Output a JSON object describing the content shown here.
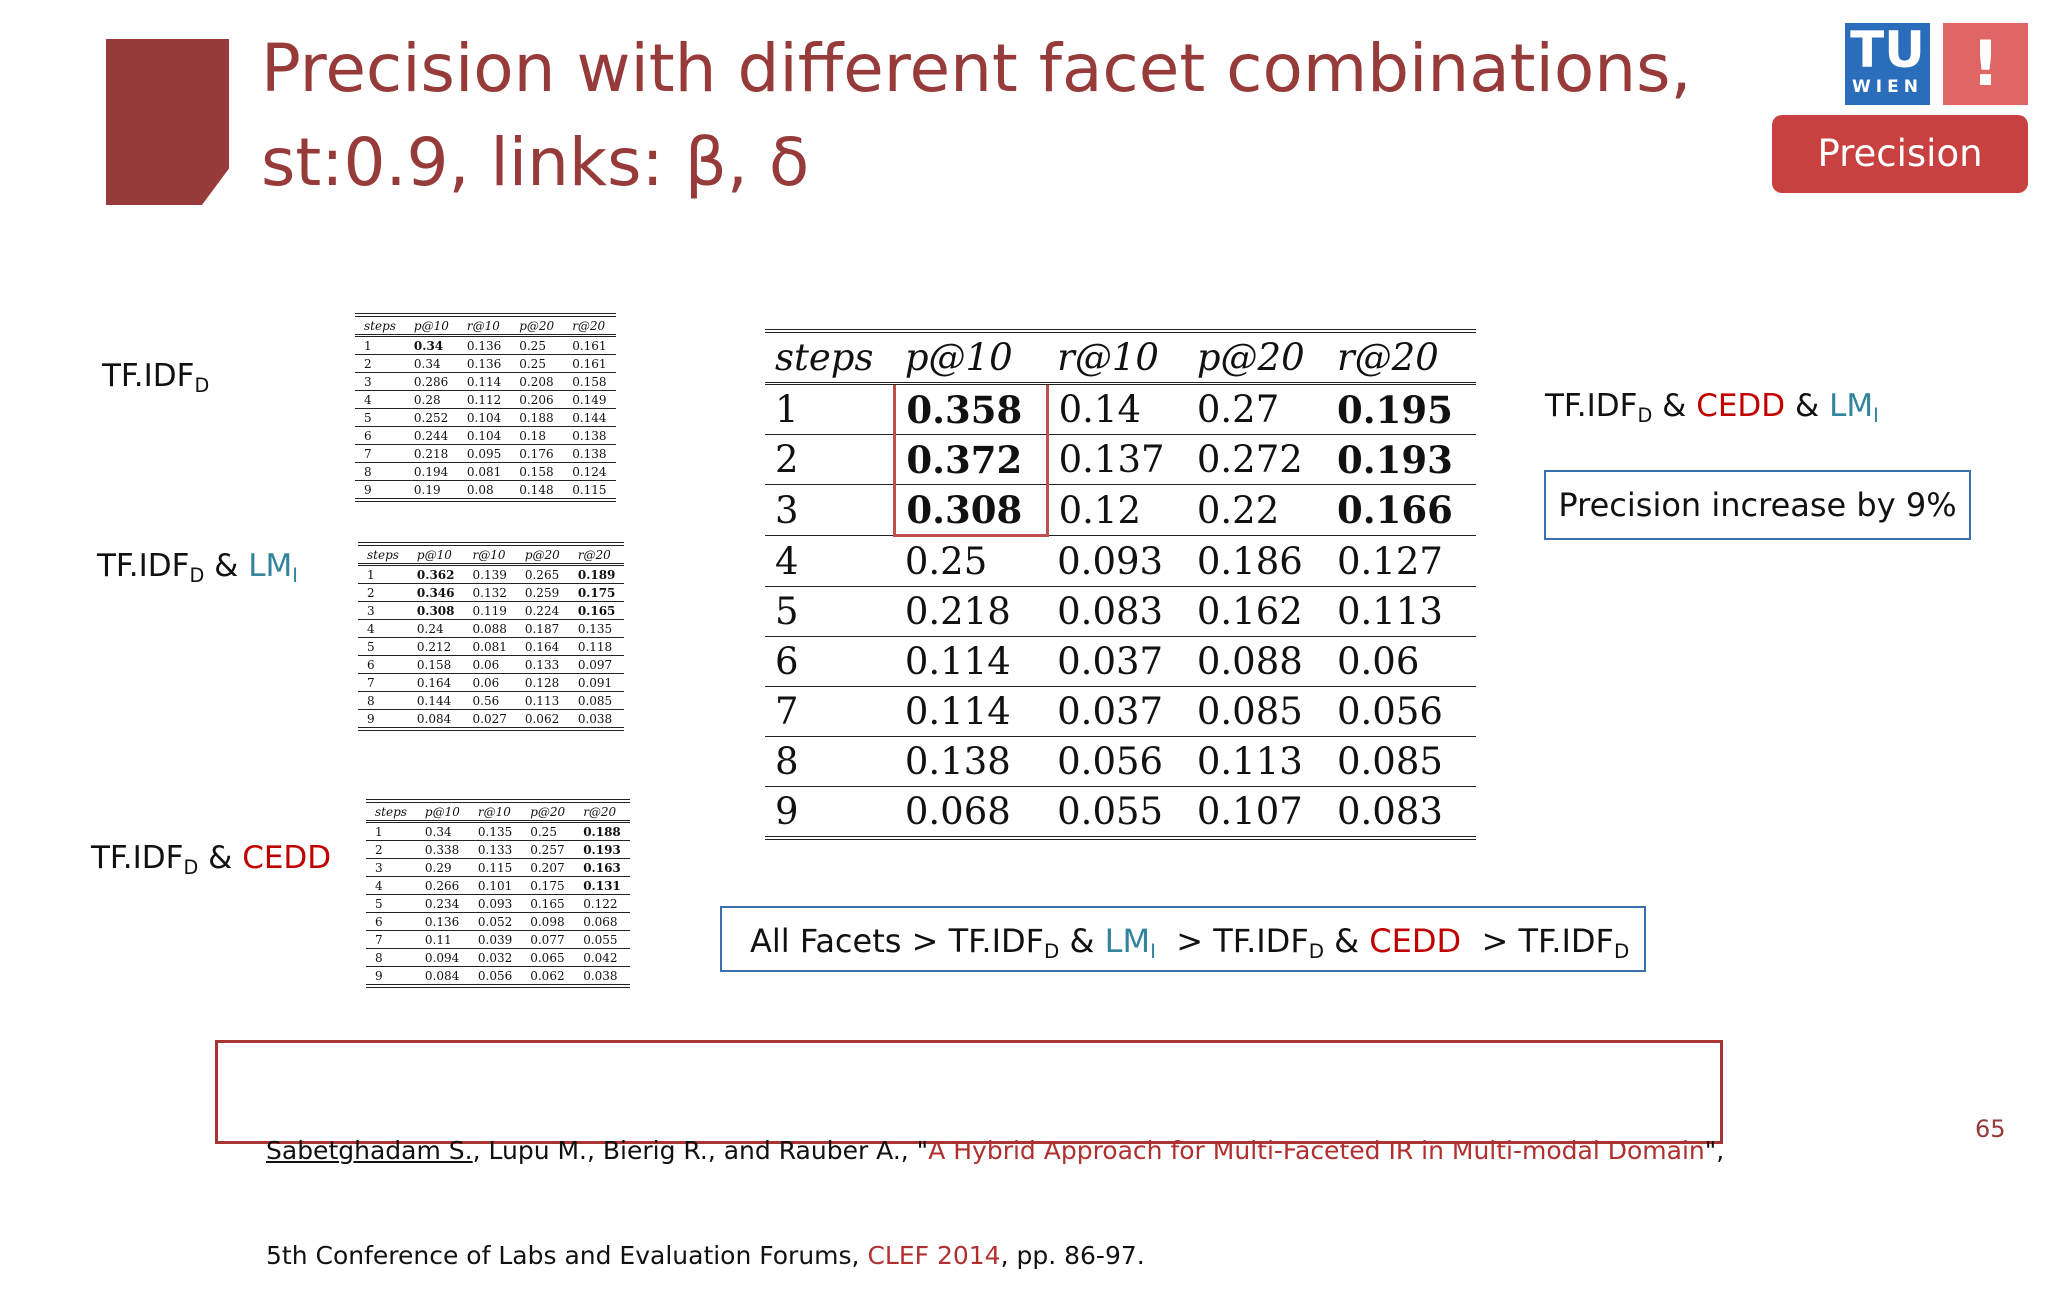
{
  "title": {
    "lines": [
      "Precision with different facet combinations,",
      "st:0.9, links: β, δ"
    ]
  },
  "logo": {
    "mark": "TU",
    "word": "WIEN",
    "sign": "!"
  },
  "badge": "Precision",
  "small_tables": [
    {
      "label": [
        {
          "t": "TF.IDF"
        },
        {
          "t": "D",
          "sub": true
        }
      ],
      "header": [
        "steps",
        "p@10",
        "r@10",
        "p@20",
        "r@20"
      ],
      "bold": [
        [
          0,
          1
        ]
      ],
      "rows": [
        [
          1,
          0.34,
          0.136,
          0.25,
          0.161
        ],
        [
          2,
          0.34,
          0.136,
          0.25,
          0.161
        ],
        [
          3,
          0.286,
          0.114,
          0.208,
          0.158
        ],
        [
          4,
          0.28,
          0.112,
          0.206,
          0.149
        ],
        [
          5,
          0.252,
          0.104,
          0.188,
          0.144
        ],
        [
          6,
          0.244,
          0.104,
          0.18,
          0.138
        ],
        [
          7,
          0.218,
          0.095,
          0.176,
          0.138
        ],
        [
          8,
          0.194,
          0.081,
          0.158,
          0.124
        ],
        [
          9,
          0.19,
          0.08,
          0.148,
          0.115
        ]
      ]
    },
    {
      "label": [
        {
          "t": "TF.IDF"
        },
        {
          "t": "D",
          "sub": true
        },
        {
          "t": " & "
        },
        {
          "t": "LM",
          "color": "#31849b"
        },
        {
          "t": "I",
          "sub": true,
          "color": "#31849b"
        }
      ],
      "header": [
        "steps",
        "p@10",
        "r@10",
        "p@20",
        "r@20"
      ],
      "bold": [
        [
          0,
          1
        ],
        [
          1,
          1
        ],
        [
          2,
          1
        ],
        [
          0,
          4
        ],
        [
          1,
          4
        ],
        [
          2,
          4
        ]
      ],
      "rows": [
        [
          1,
          0.362,
          0.139,
          0.265,
          0.189
        ],
        [
          2,
          0.346,
          0.132,
          0.259,
          0.175
        ],
        [
          3,
          0.308,
          0.119,
          0.224,
          0.165
        ],
        [
          4,
          0.24,
          0.088,
          0.187,
          0.135
        ],
        [
          5,
          0.212,
          0.081,
          0.164,
          0.118
        ],
        [
          6,
          0.158,
          0.06,
          0.133,
          0.097
        ],
        [
          7,
          0.164,
          0.06,
          0.128,
          0.091
        ],
        [
          8,
          0.144,
          0.56,
          0.113,
          0.085
        ],
        [
          9,
          0.084,
          0.027,
          0.062,
          0.038
        ]
      ]
    },
    {
      "label": [
        {
          "t": "TF.IDF"
        },
        {
          "t": "D",
          "sub": true
        },
        {
          "t": " & "
        },
        {
          "t": "CEDD",
          "color": "#c00000"
        }
      ],
      "header": [
        "steps",
        "p@10",
        "r@10",
        "p@20",
        "r@20"
      ],
      "bold": [
        [
          0,
          4
        ],
        [
          1,
          4
        ],
        [
          2,
          4
        ],
        [
          3,
          4
        ]
      ],
      "rows": [
        [
          1,
          0.34,
          0.135,
          0.25,
          0.188
        ],
        [
          2,
          0.338,
          0.133,
          0.257,
          0.193
        ],
        [
          3,
          0.29,
          0.115,
          0.207,
          0.163
        ],
        [
          4,
          0.266,
          0.101,
          0.175,
          0.131
        ],
        [
          5,
          0.234,
          0.093,
          0.165,
          0.122
        ],
        [
          6,
          0.136,
          0.052,
          0.098,
          0.068
        ],
        [
          7,
          0.11,
          0.039,
          0.077,
          0.055
        ],
        [
          8,
          0.094,
          0.032,
          0.065,
          0.042
        ],
        [
          9,
          0.084,
          0.056,
          0.062,
          0.038
        ]
      ]
    }
  ],
  "main_table": {
    "label": [
      {
        "t": "TF.IDF"
      },
      {
        "t": "D",
        "sub": true
      },
      {
        "t": " & "
      },
      {
        "t": "CEDD",
        "color": "#c00000"
      },
      {
        "t": " & "
      },
      {
        "t": "LM",
        "color": "#31849b"
      },
      {
        "t": "I",
        "sub": true,
        "color": "#31849b"
      }
    ],
    "header": [
      "steps",
      "p@10",
      "r@10",
      "p@20",
      "r@20"
    ],
    "bold": [
      [
        0,
        1
      ],
      [
        1,
        1
      ],
      [
        2,
        1
      ],
      [
        0,
        4
      ],
      [
        1,
        4
      ],
      [
        2,
        4
      ]
    ],
    "highlight": {
      "col": 1,
      "rows": [
        0,
        2
      ],
      "color": "#c0504d"
    },
    "rows": [
      [
        1,
        0.358,
        0.14,
        0.27,
        0.195
      ],
      [
        2,
        0.372,
        0.137,
        0.272,
        0.193
      ],
      [
        3,
        0.308,
        0.12,
        0.22,
        0.166
      ],
      [
        4,
        0.25,
        0.093,
        0.186,
        0.127
      ],
      [
        5,
        0.218,
        0.083,
        0.162,
        0.113
      ],
      [
        6,
        0.114,
        0.037,
        0.088,
        0.06
      ],
      [
        7,
        0.114,
        0.037,
        0.085,
        0.056
      ],
      [
        8,
        0.138,
        0.056,
        0.113,
        0.085
      ],
      [
        9,
        0.068,
        0.055,
        0.107,
        0.083
      ]
    ]
  },
  "note": "Precision increase by 9%",
  "ranking": [
    {
      "t": "All Facets > "
    },
    {
      "t": "TF.IDF"
    },
    {
      "t": "D",
      "sub": true
    },
    {
      "t": " & "
    },
    {
      "t": "LM",
      "color": "#31849b"
    },
    {
      "t": "I",
      "sub": true,
      "color": "#31849b"
    },
    {
      "t": "  > TF.IDF"
    },
    {
      "t": "D",
      "sub": true
    },
    {
      "t": " & "
    },
    {
      "t": "CEDD",
      "color": "#c00000"
    },
    {
      "t": "  > TF.IDF"
    },
    {
      "t": "D",
      "sub": true
    }
  ],
  "citation": [
    [
      {
        "t": "Sabetghadam S.",
        "underline": true
      },
      {
        "t": ", Lupu M., Bierig R., and Rauber A., \""
      },
      {
        "t": "A Hybrid Approach for Multi-Faceted IR in Multi-modal Domain",
        "color": "#b03030"
      },
      {
        "t": "\","
      }
    ],
    [
      {
        "t": "5th Conference of Labs and Evaluation Forums, "
      },
      {
        "t": "CLEF 2014",
        "color": "#b03030"
      },
      {
        "t": ", pp. 86-97."
      }
    ]
  ],
  "page_number": "65"
}
